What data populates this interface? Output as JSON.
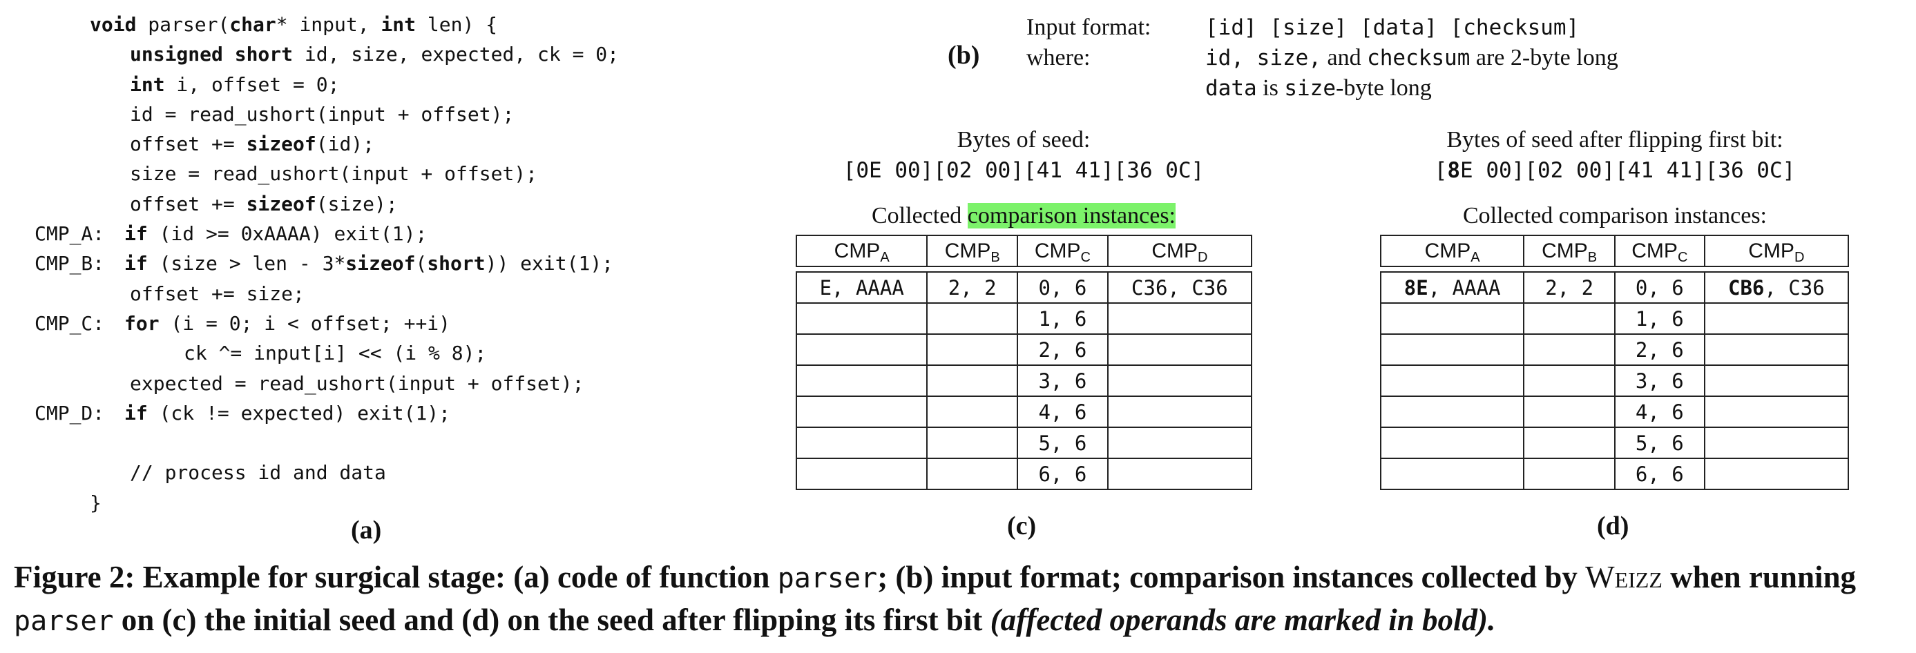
{
  "code": {
    "lines": [
      {
        "label": "",
        "indent": 1,
        "parts": [
          {
            "t": "void",
            "b": true
          },
          {
            "t": " parser("
          },
          {
            "t": "char",
            "b": true
          },
          {
            "t": "* input, "
          },
          {
            "t": "int",
            "b": true
          },
          {
            "t": " len) {"
          }
        ]
      },
      {
        "label": "",
        "indent": 2,
        "parts": [
          {
            "t": "unsigned short",
            "b": true
          },
          {
            "t": " id, size, expected, ck = 0;"
          }
        ]
      },
      {
        "label": "",
        "indent": 2,
        "parts": [
          {
            "t": "int",
            "b": true
          },
          {
            "t": " i, offset = 0;"
          }
        ]
      },
      {
        "label": "",
        "indent": 2,
        "parts": [
          {
            "t": "id = read_ushort(input + offset);"
          }
        ]
      },
      {
        "label": "",
        "indent": 2,
        "parts": [
          {
            "t": "offset += "
          },
          {
            "t": "sizeof",
            "b": true
          },
          {
            "t": "(id);"
          }
        ]
      },
      {
        "label": "",
        "indent": 2,
        "parts": [
          {
            "t": "size = read_ushort(input + offset);"
          }
        ]
      },
      {
        "label": "",
        "indent": 2,
        "parts": [
          {
            "t": "offset += "
          },
          {
            "t": "sizeof",
            "b": true
          },
          {
            "t": "(size);"
          }
        ]
      },
      {
        "label": "CMP_A:",
        "indent": 0,
        "parts": [
          {
            "t": "if",
            "b": true
          },
          {
            "t": " (id >= 0xAAAA) exit(1);"
          }
        ]
      },
      {
        "label": "CMP_B:",
        "indent": 0,
        "parts": [
          {
            "t": "if",
            "b": true
          },
          {
            "t": " (size > len - 3*"
          },
          {
            "t": "sizeof",
            "b": true
          },
          {
            "t": "("
          },
          {
            "t": "short",
            "b": true
          },
          {
            "t": ")) exit(1);"
          }
        ]
      },
      {
        "label": "",
        "indent": 2,
        "parts": [
          {
            "t": "offset += size;"
          }
        ]
      },
      {
        "label": "CMP_C:",
        "indent": 0,
        "parts": [
          {
            "t": "for",
            "b": true
          },
          {
            "t": " (i = 0; i < offset; ++i)"
          }
        ]
      },
      {
        "label": "",
        "indent": 3,
        "parts": [
          {
            "t": "ck ^= input[i] << (i % 8);"
          }
        ]
      },
      {
        "label": "",
        "indent": 2,
        "parts": [
          {
            "t": "expected = read_ushort(input + offset);"
          }
        ]
      },
      {
        "label": "CMP_D:",
        "indent": 0,
        "parts": [
          {
            "t": "if",
            "b": true
          },
          {
            "t": " (ck != expected) exit(1);"
          }
        ]
      },
      {
        "label": "",
        "indent": 2,
        "parts": [
          {
            "t": ""
          }
        ]
      },
      {
        "label": "",
        "indent": 2,
        "parts": [
          {
            "t": "// process id and data"
          }
        ]
      },
      {
        "label": "",
        "indent": 1,
        "parts": [
          {
            "t": "}"
          }
        ]
      }
    ],
    "panel": "(a)"
  },
  "format": {
    "panel": "(b)",
    "term1": "Input format:",
    "def1": "[id] [size] [data] [checksum]",
    "term2": "where:",
    "def2_mono": "id, size,",
    "def2_serif_and": " and ",
    "def2_mono2": "checksum",
    "def2_serif": " are 2-byte long",
    "def3_mono": "data",
    "def3_serif": " is ",
    "def3_mono2": "size",
    "def3_serif2": "-byte long"
  },
  "seed_c": {
    "panel": "(c)",
    "heading": "Bytes of seed:",
    "bytes": "[0E 00][02 00][41 41][36 0C]",
    "collected_prefix": "Collected ",
    "collected_highlight": "comparison instances:",
    "columns": [
      "CMP",
      "CMP",
      "CMP",
      "CMP"
    ],
    "subs": [
      "A",
      "B",
      "C",
      "D"
    ],
    "rows": [
      [
        "E, AAAA",
        "2, 2",
        "0, 6",
        "C36, C36"
      ],
      [
        "",
        "",
        "1, 6",
        ""
      ],
      [
        "",
        "",
        "2, 6",
        ""
      ],
      [
        "",
        "",
        "3, 6",
        ""
      ],
      [
        "",
        "",
        "4, 6",
        ""
      ],
      [
        "",
        "",
        "5, 6",
        ""
      ],
      [
        "",
        "",
        "6, 6",
        ""
      ]
    ]
  },
  "seed_d": {
    "panel": "(d)",
    "heading": "Bytes of seed after flipping first bit:",
    "bytes_pre": "[",
    "bytes_bold": "8",
    "bytes_post": "E 00][02 00][41 41][36 0C]",
    "collected": "Collected comparison instances:",
    "columns": [
      "CMP",
      "CMP",
      "CMP",
      "CMP"
    ],
    "subs": [
      "A",
      "B",
      "C",
      "D"
    ],
    "row0": [
      {
        "bold": "8E",
        "rest": ", AAAA"
      },
      {
        "bold": "",
        "rest": "2, 2"
      },
      {
        "bold": "",
        "rest": "0, 6"
      },
      {
        "bold": "CB6",
        "rest": ", C36"
      }
    ],
    "rows": [
      [
        "",
        "",
        "1, 6",
        ""
      ],
      [
        "",
        "",
        "2, 6",
        ""
      ],
      [
        "",
        "",
        "3, 6",
        ""
      ],
      [
        "",
        "",
        "4, 6",
        ""
      ],
      [
        "",
        "",
        "5, 6",
        ""
      ],
      [
        "",
        "",
        "6, 6",
        ""
      ]
    ]
  },
  "caption": {
    "p1": "Figure 2: Example for surgical stage: (a) code of function ",
    "code1": "parser",
    "p2": "; (b) input format; comparison instances collected by ",
    "tool": "Weizz",
    "p3": " when running ",
    "code2": "parser",
    "p4": " on (c) the initial seed and (d) on the seed after flipping its first bit ",
    "italic": "(affected operands are marked in bold)."
  }
}
